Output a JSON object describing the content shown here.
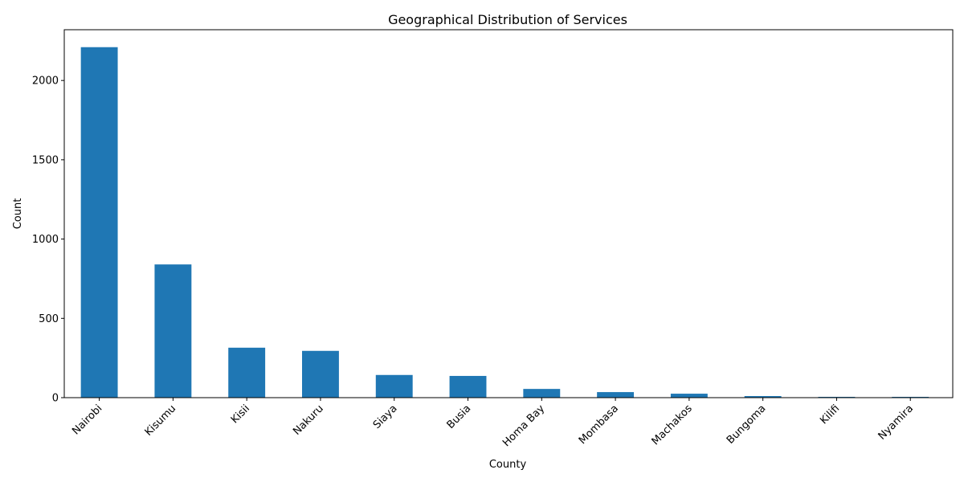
{
  "chart_data": {
    "type": "bar",
    "title": "Geographical Distribution of Services",
    "xlabel": "County",
    "ylabel": "Count",
    "categories": [
      "Nairobi",
      "Kisumu",
      "Kisii",
      "Nakuru",
      "Siaya",
      "Busia",
      "Homa Bay",
      "Mombasa",
      "Machakos",
      "Bungoma",
      "Kilifi",
      "Nyamira"
    ],
    "values": [
      2210,
      840,
      315,
      295,
      143,
      137,
      55,
      35,
      25,
      10,
      5,
      5
    ],
    "ylim": [
      0,
      2320
    ],
    "yticks": [
      0,
      500,
      1000,
      1500,
      2000
    ],
    "grid": false,
    "bar_color": "#1f77b4"
  }
}
